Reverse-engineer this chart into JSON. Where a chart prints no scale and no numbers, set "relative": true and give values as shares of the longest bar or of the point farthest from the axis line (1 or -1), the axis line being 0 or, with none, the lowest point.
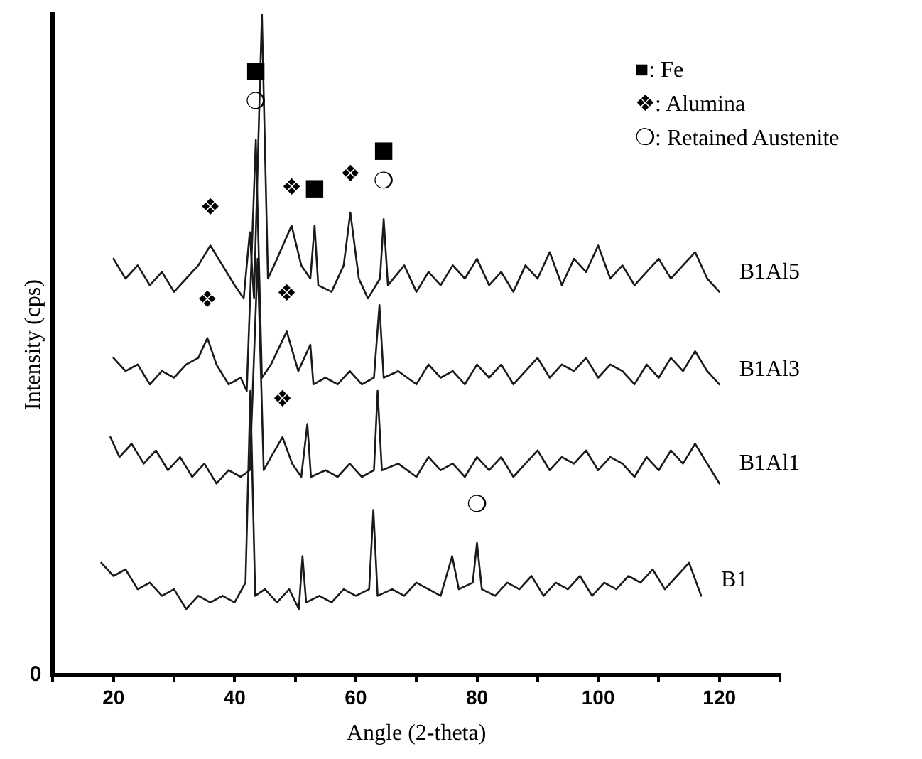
{
  "chart_data": {
    "type": "line",
    "relative": true,
    "xlabel": "Angle (2-theta)",
    "ylabel": "Intensity (cps)",
    "xlim": [
      10,
      130
    ],
    "xticks": [
      {
        "value": 10,
        "label": null
      },
      20,
      {
        "value": 30,
        "label": null
      },
      40,
      {
        "value": 50,
        "label": null
      },
      60,
      {
        "value": 70,
        "label": null
      },
      80,
      {
        "value": 90,
        "label": null
      },
      100,
      {
        "value": 110,
        "label": null
      },
      120,
      {
        "value": 130,
        "label": null
      }
    ],
    "grid": false,
    "legend": false,
    "marker": "none",
    "line_style": "solid",
    "series": [
      {
        "name": "B1Al5",
        "color": "#1a1a1a",
        "x": [
          20,
          22,
          24,
          26,
          28,
          30,
          32,
          34,
          36,
          38,
          40,
          41.5,
          42.5,
          43.2,
          44.5,
          45.5,
          47,
          49.4,
          51,
          52.5,
          53.2,
          53.8,
          56,
          58,
          59.1,
          60.5,
          62,
          64,
          64.6,
          65.3,
          68,
          70,
          72,
          74,
          76,
          78,
          80,
          82,
          84,
          86,
          88,
          90,
          92,
          94,
          96,
          98,
          100,
          102,
          104,
          106,
          108,
          110,
          112,
          114,
          116,
          118,
          120
        ],
        "values": [
          0.63,
          0.6,
          0.62,
          0.59,
          0.61,
          0.58,
          0.6,
          0.62,
          0.65,
          0.62,
          0.59,
          0.57,
          0.67,
          0.57,
          1,
          0.6,
          0.63,
          0.68,
          0.62,
          0.6,
          0.68,
          0.59,
          0.58,
          0.62,
          0.7,
          0.6,
          0.57,
          0.6,
          0.69,
          0.59,
          0.62,
          0.58,
          0.61,
          0.59,
          0.62,
          0.6,
          0.63,
          0.59,
          0.61,
          0.58,
          0.62,
          0.6,
          0.64,
          0.59,
          0.63,
          0.61,
          0.65,
          0.6,
          0.62,
          0.59,
          0.61,
          0.63,
          0.6,
          0.62,
          0.64,
          0.6,
          0.58
        ]
      },
      {
        "name": "B1Al3",
        "color": "#1a1a1a",
        "x": [
          20,
          22,
          24,
          26,
          28,
          30,
          32,
          34,
          35.5,
          37,
          39,
          41,
          42,
          43.5,
          44.5,
          46,
          48.6,
          50.5,
          52.5,
          53,
          55,
          57,
          59,
          61,
          63,
          63.9,
          64.6,
          67,
          70,
          72,
          74,
          76,
          78,
          80,
          82,
          84,
          86,
          88,
          90,
          92,
          94,
          96,
          98,
          100,
          102,
          104,
          106,
          108,
          110,
          112,
          114,
          116,
          118,
          120
        ],
        "values": [
          0.48,
          0.46,
          0.47,
          0.44,
          0.46,
          0.45,
          0.47,
          0.48,
          0.51,
          0.47,
          0.44,
          0.45,
          0.43,
          0.81,
          0.45,
          0.47,
          0.52,
          0.46,
          0.5,
          0.44,
          0.45,
          0.44,
          0.46,
          0.44,
          0.45,
          0.56,
          0.45,
          0.46,
          0.44,
          0.47,
          0.45,
          0.46,
          0.44,
          0.47,
          0.45,
          0.47,
          0.44,
          0.46,
          0.48,
          0.45,
          0.47,
          0.46,
          0.48,
          0.45,
          0.47,
          0.46,
          0.44,
          0.47,
          0.45,
          0.48,
          0.46,
          0.49,
          0.46,
          0.44
        ]
      },
      {
        "name": "B1Al1",
        "color": "#1a1a1a",
        "x": [
          19.5,
          21,
          23,
          25,
          27,
          29,
          31,
          33,
          35,
          37,
          39,
          41,
          42.5,
          43.8,
          44.8,
          46,
          47.9,
          49.5,
          51,
          52,
          52.6,
          55,
          57,
          59,
          61,
          63,
          63.6,
          64.3,
          67,
          70,
          72,
          74,
          76,
          78,
          80,
          82,
          84,
          86,
          88,
          90,
          92,
          94,
          96,
          98,
          100,
          102,
          104,
          106,
          108,
          110,
          112,
          114,
          116,
          118,
          120
        ],
        "values": [
          0.36,
          0.33,
          0.35,
          0.32,
          0.34,
          0.31,
          0.33,
          0.3,
          0.32,
          0.29,
          0.31,
          0.3,
          0.31,
          0.63,
          0.31,
          0.33,
          0.36,
          0.32,
          0.3,
          0.38,
          0.3,
          0.31,
          0.3,
          0.32,
          0.3,
          0.31,
          0.43,
          0.31,
          0.32,
          0.3,
          0.33,
          0.31,
          0.32,
          0.3,
          0.33,
          0.31,
          0.33,
          0.3,
          0.32,
          0.34,
          0.31,
          0.33,
          0.32,
          0.34,
          0.31,
          0.33,
          0.32,
          0.3,
          0.33,
          0.31,
          0.34,
          0.32,
          0.35,
          0.32,
          0.29
        ]
      },
      {
        "name": "B1",
        "color": "#1a1a1a",
        "x": [
          18,
          20,
          22,
          24,
          26,
          28,
          30,
          32,
          34,
          36,
          38,
          40,
          41.8,
          42.6,
          43.4,
          45,
          47,
          49,
          50.6,
          51.2,
          51.8,
          54,
          56,
          58,
          60,
          62.2,
          62.9,
          63.6,
          66,
          68,
          70,
          72,
          74,
          75.9,
          77,
          79.3,
          80,
          80.8,
          83,
          85,
          87,
          89,
          91,
          93,
          95,
          97,
          99,
          101,
          103,
          105,
          107,
          109,
          111,
          113,
          115,
          117
        ],
        "values": [
          0.17,
          0.15,
          0.16,
          0.13,
          0.14,
          0.12,
          0.13,
          0.1,
          0.12,
          0.11,
          0.12,
          0.11,
          0.14,
          0.43,
          0.12,
          0.13,
          0.11,
          0.13,
          0.1,
          0.18,
          0.11,
          0.12,
          0.11,
          0.13,
          0.12,
          0.13,
          0.25,
          0.12,
          0.13,
          0.12,
          0.14,
          0.13,
          0.12,
          0.18,
          0.13,
          0.14,
          0.2,
          0.13,
          0.12,
          0.14,
          0.13,
          0.15,
          0.12,
          0.14,
          0.13,
          0.15,
          0.12,
          0.14,
          0.13,
          0.15,
          0.14,
          0.16,
          0.13,
          0.15,
          0.17,
          0.12
        ]
      }
    ],
    "annotations": [
      "0",
      "■: Fe",
      "❖: Alumina",
      "❍: Retained Austenite",
      {
        "text": "❍",
        "x": 43.5,
        "y": 0.81
      },
      {
        "text": "■",
        "x": 43.5,
        "y": 0.81
      },
      {
        "text": "❖",
        "x": 36,
        "y": 0.65
      },
      {
        "text": "❖",
        "x": 49.4,
        "y": 0.68
      },
      {
        "text": "■",
        "x": 53.2,
        "y": 0.68
      },
      {
        "text": "❖",
        "x": 59.1,
        "y": 0.7
      },
      {
        "text": "❍",
        "x": 64.6,
        "y": 0.69
      },
      {
        "text": "■",
        "x": 64.6,
        "y": 0.69
      },
      {
        "text": "❖",
        "x": 35.5,
        "y": 0.51
      },
      {
        "text": "❖",
        "x": 48.6,
        "y": 0.52
      },
      {
        "text": "❖",
        "x": 47.9,
        "y": 0.36
      },
      {
        "text": "❍",
        "x": 80,
        "y": 0.2
      }
    ]
  }
}
